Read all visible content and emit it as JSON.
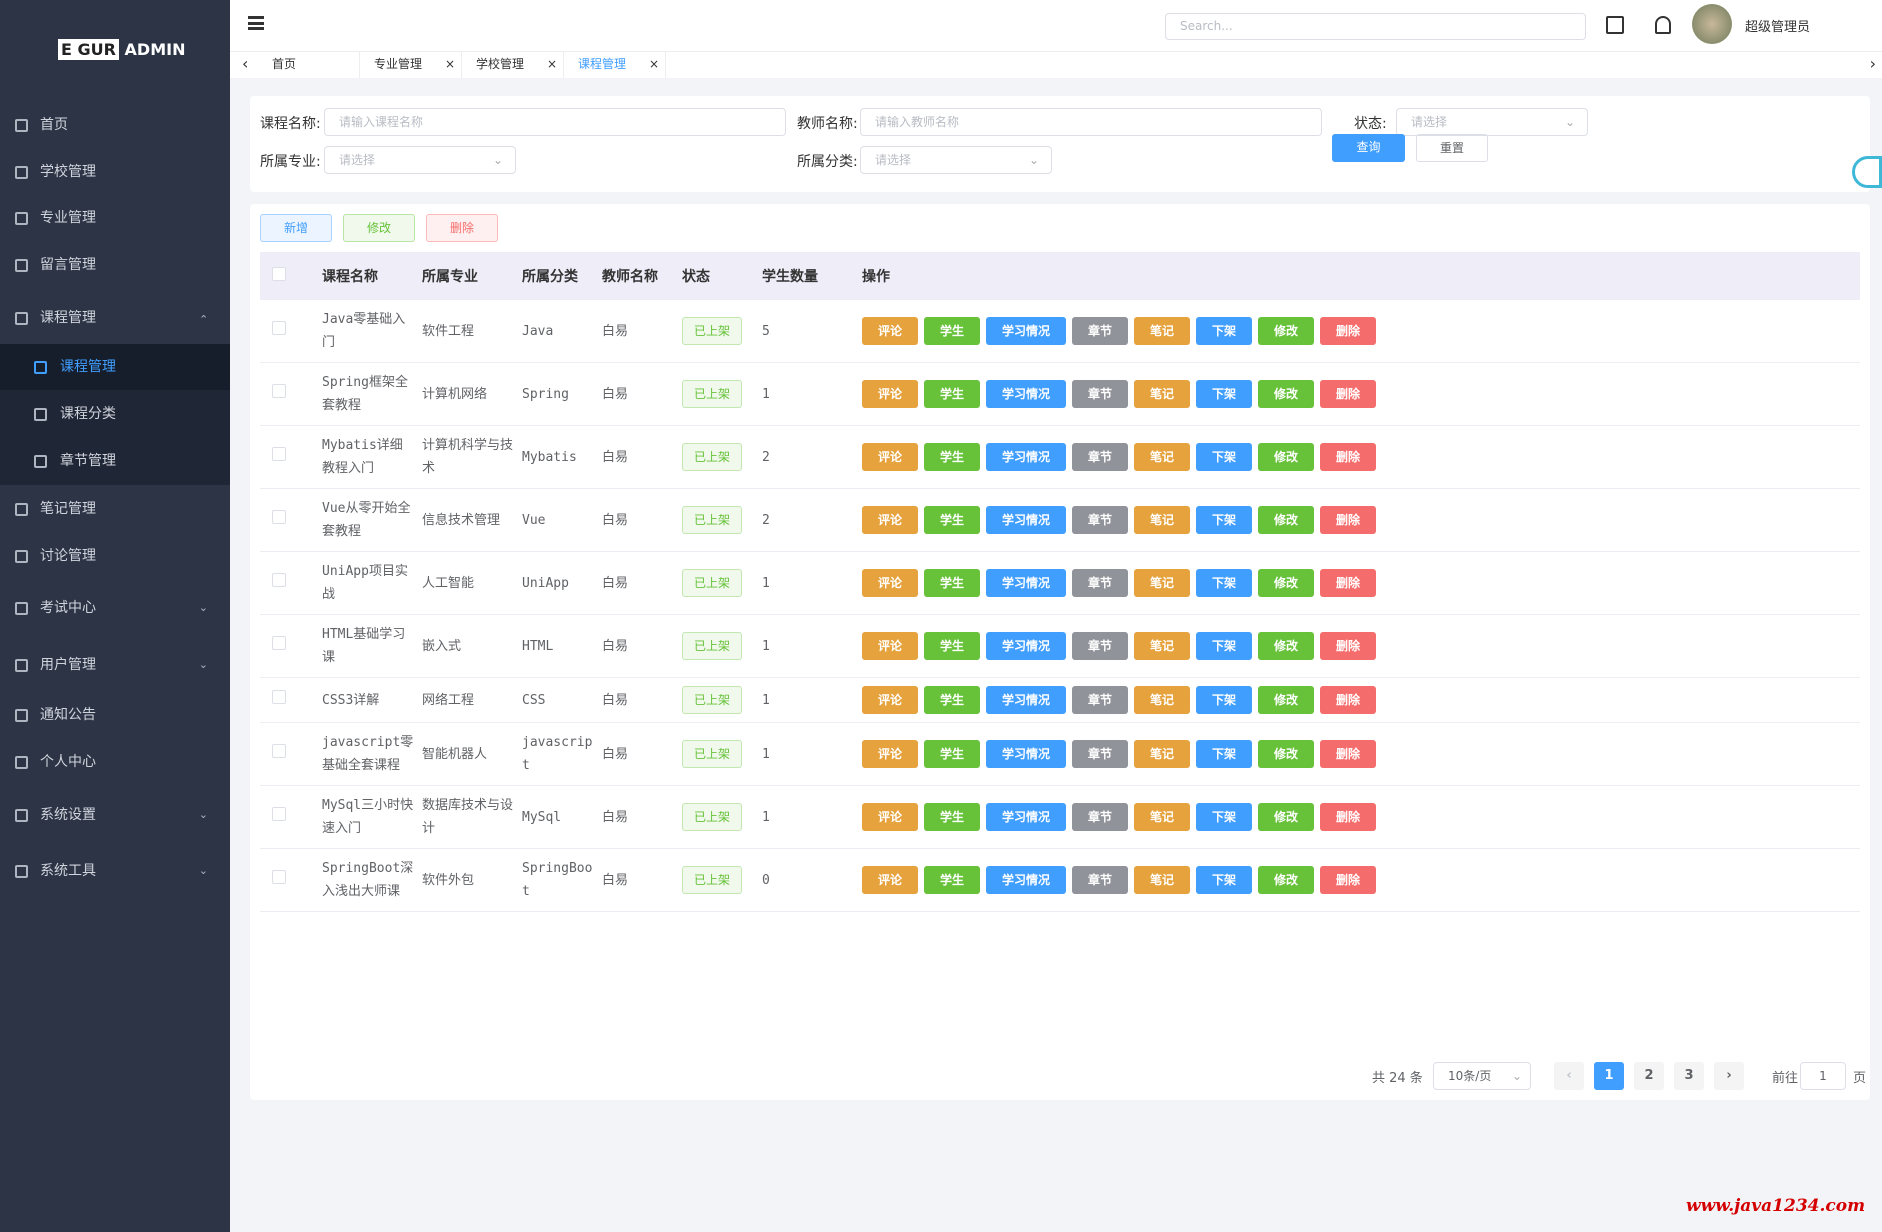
{
  "brand": {
    "left": "E GUR",
    "right": "ADMIN"
  },
  "menu": [
    {
      "label": "首页"
    },
    {
      "label": "学校管理"
    },
    {
      "label": "专业管理"
    },
    {
      "label": "留言管理"
    },
    {
      "label": "课程管理",
      "arrow": "up",
      "children": [
        {
          "label": "课程管理",
          "active": true
        },
        {
          "label": "课程分类"
        },
        {
          "label": "章节管理"
        }
      ]
    },
    {
      "label": "笔记管理"
    },
    {
      "label": "讨论管理"
    },
    {
      "label": "考试中心",
      "arrow": "down"
    },
    {
      "label": "用户管理",
      "arrow": "down"
    },
    {
      "label": "通知公告"
    },
    {
      "label": "个人中心"
    },
    {
      "label": "系统设置",
      "arrow": "down"
    },
    {
      "label": "系统工具",
      "arrow": "down"
    }
  ],
  "header": {
    "search_placeholder": "Search...",
    "user": "超级管理员"
  },
  "tabs": {
    "items": [
      "首页",
      "专业管理",
      "学校管理",
      "课程管理"
    ],
    "active": 3
  },
  "filters": [
    {
      "label": "课程名称:",
      "placeholder": "请输入课程名称",
      "kind": "input"
    },
    {
      "label": "教师名称:",
      "placeholder": "请输入教师名称",
      "kind": "input"
    },
    {
      "label": "状态:",
      "placeholder": "请选择",
      "kind": "select"
    },
    {
      "label": "所属专业:",
      "placeholder": "请选择",
      "kind": "select"
    },
    {
      "label": "所属分类:",
      "placeholder": "请选择",
      "kind": "select"
    }
  ],
  "search_buttons": {
    "query": "查询",
    "reset": "重置"
  },
  "toolbar": [
    {
      "label": "新增",
      "color": "#409eff"
    },
    {
      "label": "修改",
      "color": "#67c23a"
    },
    {
      "label": "删除",
      "color": "#f56c6c"
    }
  ],
  "table": {
    "columns": [
      "课程名称",
      "所属专业",
      "所属分类",
      "教师名称",
      "状态",
      "学生数量",
      "操作"
    ],
    "rows": [
      [
        "Java零基础入门",
        "软件工程",
        "Java",
        "白易",
        "已上架",
        5
      ],
      [
        "Spring框架全套教程",
        "计算机网络",
        "Spring",
        "白易",
        "已上架",
        1
      ],
      [
        "Mybatis详细教程入门",
        "计算机科学与技术",
        "Mybatis",
        "白易",
        "已上架",
        2
      ],
      [
        "Vue从零开始全套教程",
        "信息技术管理",
        "Vue",
        "白易",
        "已上架",
        2
      ],
      [
        "UniApp项目实战",
        "人工智能",
        "UniApp",
        "白易",
        "已上架",
        1
      ],
      [
        "HTML基础学习课",
        "嵌入式",
        "HTML",
        "白易",
        "已上架",
        1
      ],
      [
        "CSS3详解",
        "网络工程",
        "CSS",
        "白易",
        "已上架",
        1
      ],
      [
        "javascript零基础全套课程",
        "智能机器人",
        "javascript",
        "白易",
        "已上架",
        1
      ],
      [
        "MySql三小时快速入门",
        "数据库技术与设计",
        "MySql",
        "白易",
        "已上架",
        1
      ],
      [
        "SpringBoot深入浅出大师课",
        "软件外包",
        "SpringBoot",
        "白易",
        "已上架",
        0
      ]
    ],
    "actions": [
      {
        "label": "评论",
        "color": "#e6a23c"
      },
      {
        "label": "学生",
        "color": "#67c23a"
      },
      {
        "label": "学习情况",
        "color": "#409eff"
      },
      {
        "label": "章节",
        "color": "#909399"
      },
      {
        "label": "笔记",
        "color": "#e6a23c"
      },
      {
        "label": "下架",
        "color": "#409eff"
      },
      {
        "label": "修改",
        "color": "#67c23a"
      },
      {
        "label": "删除",
        "color": "#f56c6c"
      }
    ]
  },
  "pagination": {
    "total": "共 24 条",
    "page_size": "10条/页",
    "pages": [
      1,
      2,
      3
    ],
    "current": 1,
    "goto": "前往",
    "goto_value": 1,
    "page_unit": "页"
  },
  "watermark": "www.java1234.com"
}
